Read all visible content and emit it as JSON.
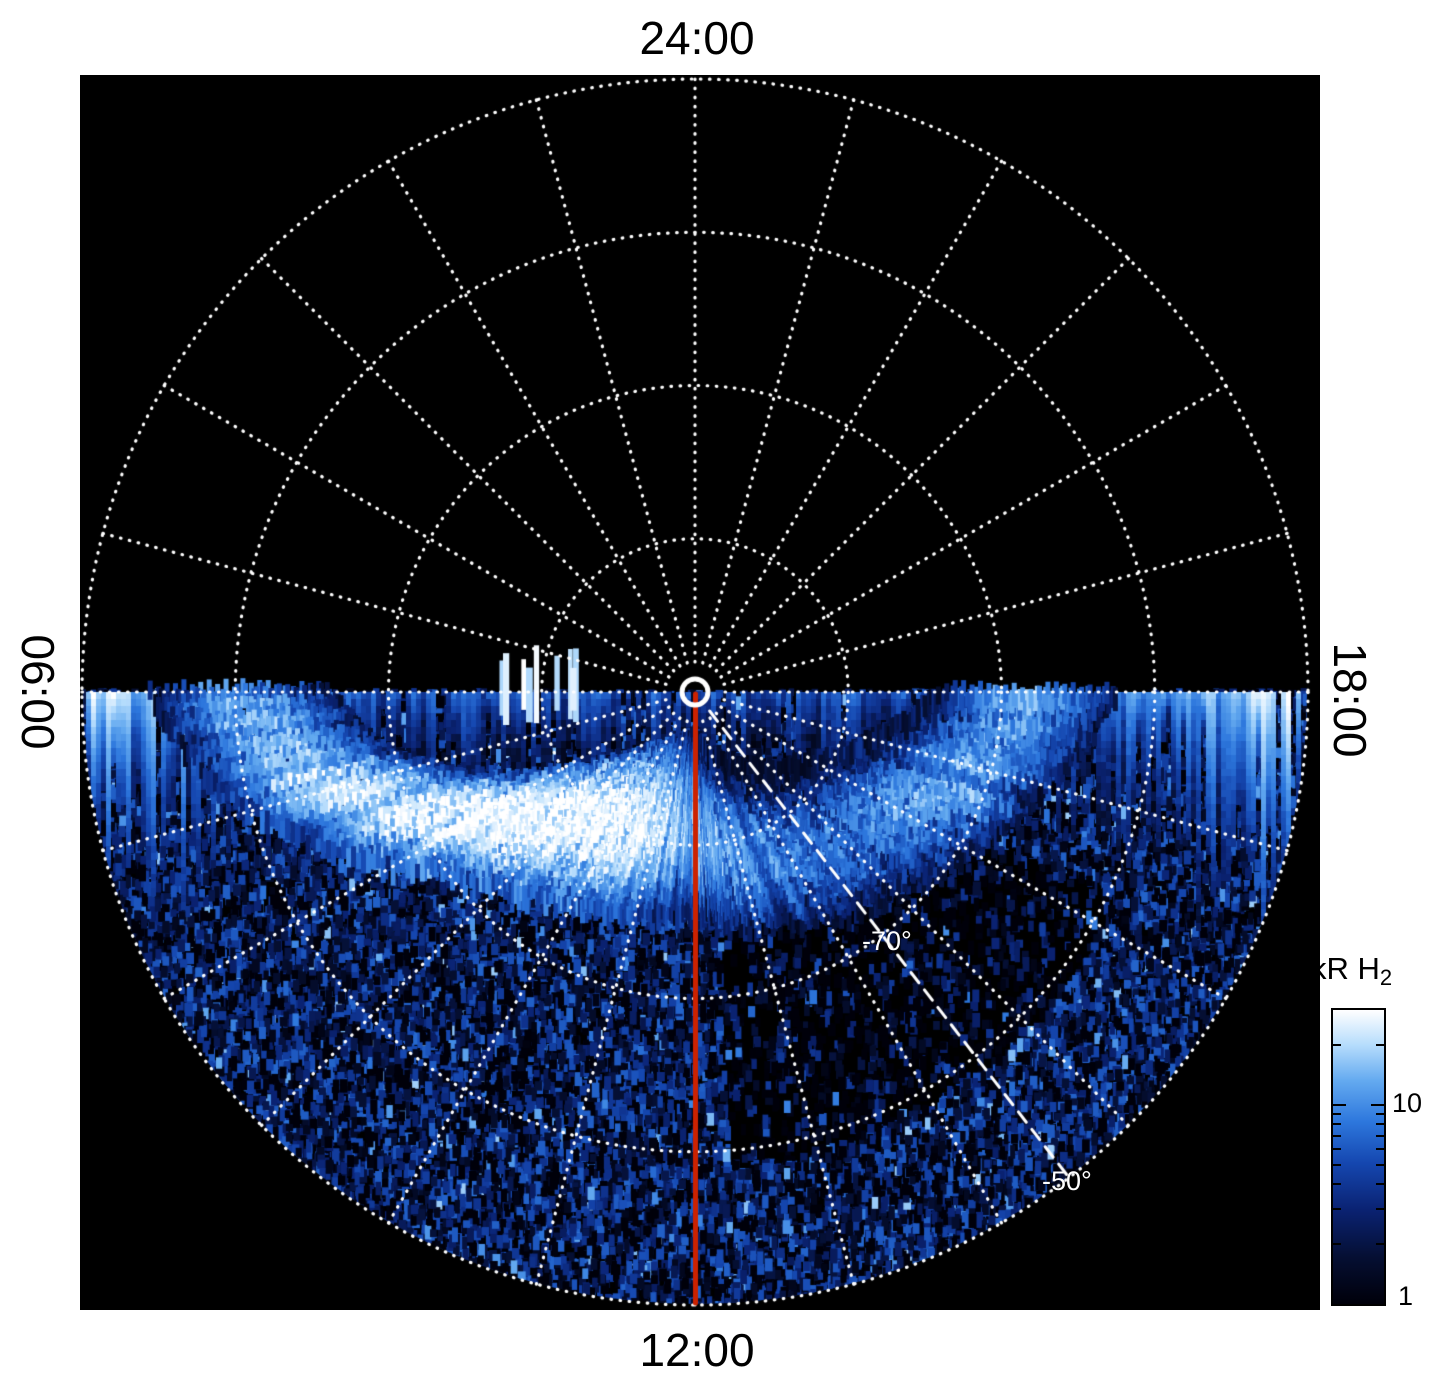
{
  "figure": {
    "time_labels": {
      "top": "24:00",
      "bottom": "12:00",
      "left": "06:00",
      "right": "18:00"
    },
    "lat_labels": [
      {
        "text": "-70°"
      },
      {
        "text": "-50°"
      }
    ]
  },
  "colorbar": {
    "title_main": "kR H",
    "title_sub": "2",
    "tick_major": "10",
    "tick_min": "1",
    "scale": "log",
    "min": 1,
    "max": 30
  },
  "chart_data": {
    "type": "heatmap",
    "projection": "south-polar-local-time",
    "quantity": "H2 auroral emission brightness (kR)",
    "angular_axis": {
      "unit": "local time (hours)",
      "labels": [
        "24:00",
        "06:00",
        "12:00",
        "18:00"
      ],
      "spoke_interval_hours": 1
    },
    "radial_axis": {
      "unit": "latitude (deg)",
      "pole": -90,
      "rings": [
        -80,
        -70,
        -60,
        -50
      ],
      "outer_ring": -50,
      "labeled_rings": [
        "-70°",
        "-50°"
      ]
    },
    "color_scale": {
      "label": "kR H2",
      "type": "log",
      "min": 1,
      "max": 30,
      "ticks": [
        1,
        10
      ],
      "stops": [
        {
          "t": 0.0,
          "color": "#00000a"
        },
        {
          "t": 0.16,
          "color": "#050f33"
        },
        {
          "t": 0.32,
          "color": "#0a2272"
        },
        {
          "t": 0.48,
          "color": "#1547b0"
        },
        {
          "t": 0.62,
          "color": "#2d77dd"
        },
        {
          "t": 0.76,
          "color": "#64aaf0"
        },
        {
          "t": 0.88,
          "color": "#b5dcfc"
        },
        {
          "t": 1.0,
          "color": "#ffffff"
        }
      ]
    },
    "main_oval": {
      "description": "Bright dayside auroral arc, peak near 08:30-09:30 LT around -78 latitude",
      "width_deg": 3.2,
      "points": [
        {
          "lt": 6.0,
          "colat": 30.0,
          "kr": 12
        },
        {
          "lt": 6.8,
          "colat": 26.0,
          "kr": 18
        },
        {
          "lt": 7.6,
          "colat": 20.0,
          "kr": 26
        },
        {
          "lt": 8.3,
          "colat": 15.0,
          "kr": 34
        },
        {
          "lt": 9.0,
          "colat": 12.5,
          "kr": 40
        },
        {
          "lt": 9.7,
          "colat": 10.8,
          "kr": 34
        },
        {
          "lt": 10.5,
          "colat": 10.0,
          "kr": 28
        },
        {
          "lt": 11.2,
          "colat": 9.4,
          "kr": 20
        },
        {
          "lt": 12.0,
          "colat": 9.0,
          "kr": 14
        },
        {
          "lt": 13.0,
          "colat": 10.0,
          "kr": 12
        },
        {
          "lt": 14.0,
          "colat": 11.5,
          "kr": 9
        },
        {
          "lt": 15.0,
          "colat": 13.0,
          "kr": 8
        },
        {
          "lt": 16.0,
          "colat": 15.0,
          "kr": 10
        },
        {
          "lt": 17.0,
          "colat": 18.0,
          "kr": 13
        },
        {
          "lt": 18.0,
          "colat": 22.0,
          "kr": 11
        }
      ]
    },
    "limb_band": {
      "description": "Emission hugging the 06:00-18:00 line, brightening toward both limbs",
      "base_kr": 5,
      "edge_kr": 26
    },
    "diffuse_speckle": {
      "description": "Noisy 1-10 kR speckle over the dayside hemisphere",
      "typical_kr": [
        1,
        10
      ]
    },
    "dark_sector": {
      "lt_range": [
        12.3,
        16.3
      ],
      "colat_range": [
        9,
        31
      ]
    },
    "noon_meridian": {
      "lt": 12,
      "color": "#cc2200"
    },
    "dashed_meridian": {
      "screen_angle_deg_below_horizontal": 52.4
    }
  }
}
